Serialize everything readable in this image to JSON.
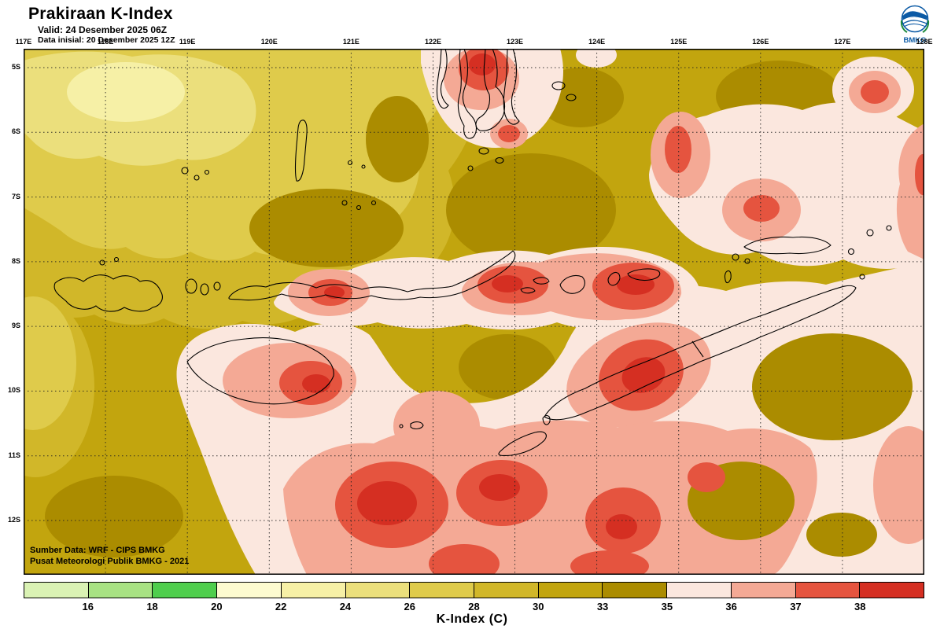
{
  "header": {
    "title": "Prakiraan K-Index",
    "valid": "Valid: 24 Desember 2025 06Z",
    "init": "Data inisial: 20 Desember 2025 12Z",
    "logo_label": "BMKG"
  },
  "map": {
    "lon_labels": [
      "117E",
      "118E",
      "119E",
      "120E",
      "121E",
      "122E",
      "123E",
      "124E",
      "125E",
      "126E",
      "127E",
      "128E"
    ],
    "lat_labels": [
      "5S",
      "6S",
      "7S",
      "8S",
      "9S",
      "10S",
      "11S",
      "12S"
    ],
    "source_line1": "Sumber Data: WRF - CIPS BMKG",
    "source_line2": "Pusat Meteorologi Publik BMKG -  2021"
  },
  "legend": {
    "title": "K-Index (C)",
    "ticks": [
      "16",
      "18",
      "20",
      "22",
      "24",
      "26",
      "28",
      "30",
      "33",
      "35",
      "36",
      "37",
      "38"
    ],
    "colors": [
      "#daf2b4",
      "#a8e283",
      "#4fce4d",
      "#fdfbd0",
      "#f6f0a6",
      "#ebdf7c",
      "#dfcb4b",
      "#d1b729",
      "#c2a50e",
      "#ab8c00",
      "#fbe7de",
      "#f4a995",
      "#e5543f",
      "#d52f22"
    ]
  }
}
